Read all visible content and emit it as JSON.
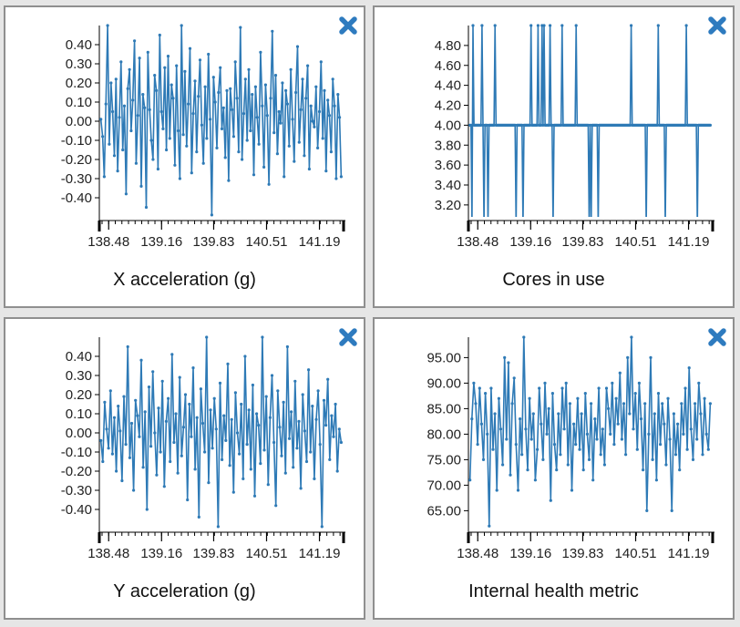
{
  "close_icon_color": "#2e7bbf",
  "line_color": "#2e7ab6",
  "charts": [
    {
      "type": "line",
      "title": "X acceleration (g)",
      "xlim": [
        138.36,
        141.5
      ],
      "ylim": [
        -0.5,
        0.5
      ],
      "xticks": [
        "138.48",
        "139.16",
        "139.83",
        "140.51",
        "141.19"
      ],
      "yticks": [
        "-0.40",
        "-0.30",
        "-0.20",
        "-0.10",
        "0.00",
        "0.10",
        "0.20",
        "0.30",
        "0.40"
      ],
      "x_start": 138.38,
      "x_end": 141.47,
      "values": [
        0.01,
        -0.08,
        -0.29,
        0.09,
        0.5,
        -0.12,
        0.2,
        0.05,
        -0.18,
        0.22,
        -0.26,
        0.02,
        0.31,
        -0.15,
        0.08,
        -0.38,
        0.17,
        0.27,
        -0.05,
        0.11,
        0.42,
        -0.22,
        0.03,
        0.33,
        -0.34,
        0.14,
        0.07,
        -0.45,
        0.36,
        0.06,
        -0.1,
        -0.2,
        0.24,
        0.16,
        -0.25,
        0.45,
        0.05,
        -0.04,
        0.28,
        -0.15,
        0.34,
        -0.09,
        0.19,
        0.12,
        -0.23,
        0.29,
        -0.05,
        -0.3,
        0.5,
        -0.07,
        0.26,
        -0.13,
        0.09,
        0.38,
        -0.27,
        0.04,
        0.21,
        -0.16,
        0.13,
        0.32,
        -0.02,
        -0.22,
        0.18,
        -0.09,
        0.35,
        0.01,
        -0.49,
        0.23,
        0.1,
        -0.14,
        0.15,
        0.28,
        -0.04,
        0.07,
        -0.19,
        0.16,
        -0.31,
        0.17,
        0.06,
        -0.08,
        0.31,
        0.12,
        -0.16,
        0.49,
        -0.2,
        0.04,
        0.22,
        -0.1,
        0.27,
        -0.05,
        0.14,
        -0.28,
        0.18,
        0.02,
        -0.12,
        0.36,
        0.08,
        -0.24,
        0.19,
        0.03,
        -0.33,
        0.12,
        0.47,
        -0.06,
        0.24,
        -0.17,
        0.05,
        -0.01,
        0.2,
        -0.29,
        0.16,
        0.09,
        -0.13,
        0.27,
        0.01,
        -0.21,
        0.15,
        0.39,
        -0.11,
        0.06,
        0.22,
        -0.18,
        0.12,
        0.29,
        -0.25,
        0.08,
        0.0,
        -0.03,
        0.18,
        -0.14,
        0.05,
        0.31,
        -0.09,
        0.16,
        -0.26,
        0.11,
        0.03,
        -0.16,
        0.22,
        0.08,
        -0.3,
        0.14,
        0.02,
        -0.29
      ]
    },
    {
      "type": "line",
      "title": "Cores in use",
      "xlim": [
        138.36,
        141.5
      ],
      "ylim": [
        3.08,
        5.0
      ],
      "xticks": [
        "138.48",
        "139.16",
        "139.83",
        "140.51",
        "141.19"
      ],
      "yticks": [
        "3.20",
        "3.40",
        "3.60",
        "3.80",
        "4.00",
        "4.20",
        "4.40",
        "4.60",
        "4.80"
      ],
      "x_start": 138.38,
      "x_end": 141.47,
      "values": [
        4,
        4,
        3,
        5,
        4,
        4,
        4,
        4,
        4,
        4,
        4,
        4,
        5,
        4,
        3,
        4,
        4,
        4,
        3,
        4,
        4,
        4,
        4,
        4,
        4,
        5,
        4,
        4,
        4,
        4,
        4,
        4,
        4,
        4,
        4,
        4,
        4,
        4,
        4,
        4,
        4,
        4,
        4,
        4,
        4,
        4,
        3,
        4,
        4,
        4,
        4,
        4,
        4,
        3,
        4,
        4,
        4,
        4,
        4,
        4,
        4,
        5,
        4,
        4,
        4,
        4,
        4,
        4,
        5,
        4,
        4,
        4,
        5,
        4,
        5,
        4,
        4,
        4,
        4,
        4,
        5,
        4,
        4,
        3,
        4,
        4,
        4,
        4,
        4,
        4,
        4,
        4,
        5,
        4,
        4,
        4,
        4,
        4,
        4,
        4,
        4,
        4,
        4,
        4,
        4,
        4,
        5,
        4,
        4,
        4,
        4,
        4,
        4,
        4,
        4,
        4,
        4,
        4,
        4,
        3,
        4,
        3,
        4,
        4,
        4,
        4,
        4,
        4,
        3,
        4,
        4,
        4,
        4,
        4,
        4,
        4,
        4,
        4,
        4,
        4,
        4,
        4,
        4,
        4,
        4,
        4,
        4,
        4,
        4,
        4,
        4,
        4,
        4,
        4,
        4,
        4,
        4,
        4,
        4,
        4,
        4,
        5,
        4,
        4,
        4,
        4,
        4,
        4,
        4,
        4,
        4,
        4,
        4,
        4,
        4,
        4,
        3,
        4,
        4,
        4,
        4,
        4,
        4,
        4,
        4,
        4,
        4,
        4,
        5,
        4,
        4,
        4,
        4,
        4,
        4,
        3,
        4,
        4,
        4,
        4,
        4,
        4,
        4,
        4,
        4,
        4,
        4,
        4,
        4,
        4,
        4,
        4,
        4,
        4,
        4,
        4,
        5,
        4,
        4,
        4,
        4,
        4,
        4,
        4,
        4,
        4,
        4,
        3,
        4,
        4,
        4,
        4,
        4,
        4,
        4,
        4,
        4,
        4,
        4,
        4,
        4
      ]
    },
    {
      "type": "line",
      "title": "Y acceleration (g)",
      "xlim": [
        138.36,
        141.5
      ],
      "ylim": [
        -0.5,
        0.5
      ],
      "xticks": [
        "138.48",
        "139.16",
        "139.83",
        "140.51",
        "141.19"
      ],
      "yticks": [
        "-0.40",
        "-0.30",
        "-0.20",
        "-0.10",
        "0.00",
        "0.10",
        "0.20",
        "0.30",
        "0.40"
      ],
      "x_start": 138.38,
      "x_end": 141.47,
      "values": [
        -0.04,
        -0.15,
        0.16,
        0.02,
        -0.08,
        0.22,
        -0.11,
        0.08,
        -0.2,
        0.14,
        0.01,
        -0.25,
        0.19,
        -0.06,
        0.45,
        -0.13,
        0.05,
        -0.3,
        0.17,
        0.09,
        -0.02,
        0.38,
        -0.18,
        0.11,
        -0.4,
        0.24,
        -0.07,
        0.32,
        0.0,
        -0.22,
        0.13,
        -0.1,
        0.27,
        -0.28,
        0.06,
        0.18,
        -0.15,
        0.41,
        -0.05,
        0.1,
        -0.21,
        0.29,
        -0.12,
        0.03,
        0.2,
        -0.35,
        0.15,
        -0.02,
        0.34,
        -0.19,
        0.08,
        -0.44,
        0.23,
        0.05,
        -0.1,
        0.5,
        -0.26,
        0.12,
        -0.08,
        0.18,
        0.02,
        -0.49,
        0.26,
        -0.14,
        0.09,
        -0.04,
        0.36,
        -0.17,
        0.07,
        -0.31,
        0.21,
        0.0,
        -0.11,
        0.15,
        -0.24,
        0.4,
        -0.06,
        0.12,
        -0.19,
        0.25,
        -0.33,
        0.1,
        0.04,
        -0.16,
        0.5,
        -0.09,
        0.19,
        -0.27,
        0.08,
        0.3,
        -0.05,
        -0.38,
        0.22,
        0.03,
        -0.12,
        0.16,
        -0.21,
        0.45,
        -0.03,
        0.11,
        -0.18,
        0.27,
        -0.08,
        0.06,
        -0.29,
        0.2,
        0.01,
        -0.15,
        0.33,
        -0.1,
        0.14,
        -0.24,
        0.07,
        0.22,
        -0.06,
        -0.49,
        0.17,
        0.04,
        0.28,
        -0.14,
        0.09,
        -0.02,
        0.15,
        -0.2,
        0.02,
        -0.05
      ]
    },
    {
      "type": "line",
      "title": "Internal health metric",
      "xlim": [
        138.36,
        141.5
      ],
      "ylim": [
        61.5,
        99.0
      ],
      "xticks": [
        "138.48",
        "139.16",
        "139.83",
        "140.51",
        "141.19"
      ],
      "yticks": [
        "65.00",
        "70.00",
        "75.00",
        "80.00",
        "85.00",
        "90.00",
        "95.00"
      ],
      "x_start": 138.38,
      "x_end": 141.47,
      "values": [
        71,
        83,
        90,
        86,
        78,
        89,
        82,
        75,
        88,
        80,
        62,
        89,
        77,
        84,
        69,
        87,
        81,
        74,
        95,
        79,
        94,
        72,
        86,
        91,
        78,
        69,
        83,
        76,
        99,
        81,
        73,
        87,
        79,
        84,
        71,
        77,
        89,
        82,
        75,
        90,
        80,
        85,
        67,
        88,
        78,
        73,
        84,
        76,
        89,
        81,
        90,
        74,
        86,
        69,
        82,
        78,
        87,
        77,
        84,
        73,
        88,
        80,
        75,
        86,
        71,
        83,
        79,
        89,
        76,
        81,
        74,
        89,
        85,
        80,
        90,
        78,
        87,
        82,
        92,
        79,
        86,
        76,
        95,
        84,
        99,
        81,
        88,
        77,
        90,
        83,
        73,
        86,
        65,
        80,
        95,
        75,
        84,
        71,
        88,
        78,
        86,
        82,
        74,
        87,
        79,
        65,
        84,
        76,
        82,
        73,
        86,
        80,
        89,
        77,
        93,
        81,
        75,
        86,
        79,
        90,
        84,
        76,
        87,
        80,
        77,
        86
      ]
    }
  ]
}
